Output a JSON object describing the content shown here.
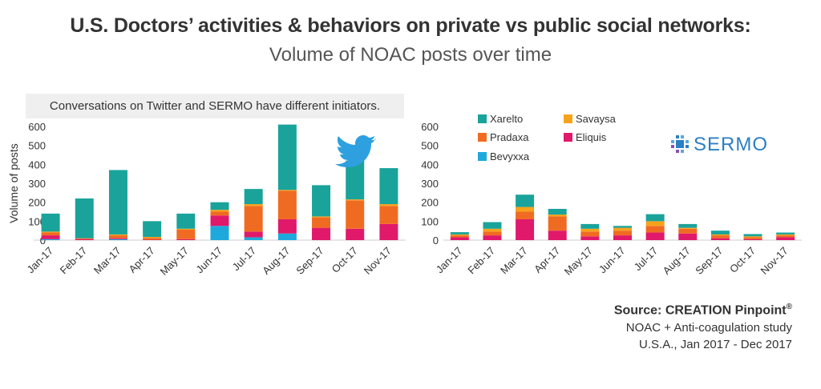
{
  "header": {
    "title": "U.S. Doctors’ activities & behaviors on private vs public social networks:",
    "subtitle": "Volume of NOAC posts over time"
  },
  "note": "Conversations on Twitter and SERMO have different initiators.",
  "source": {
    "line1": "Source: CREATION Pinpoint",
    "reg": "®",
    "line2": "NOAC + Anti-coagulation study",
    "line3": "U.S.A., Jan 2017 - Dec 2017"
  },
  "colors": {
    "Bevyxxa": "#1ea9dc",
    "Eliquis": "#e0196b",
    "Pradaxa": "#f06b22",
    "Savaysa": "#f7a21b",
    "Xarelto": "#1aa39a"
  },
  "legend": [
    "Xarelto",
    "Savaysa",
    "Pradaxa",
    "Eliquis",
    "Bevyxxa"
  ],
  "logo_text": "SERMO",
  "chart_data": [
    {
      "type": "bar",
      "stacked": true,
      "network": "Twitter",
      "categories": [
        "Jan-17",
        "Feb-17",
        "Mar-17",
        "Apr-17",
        "May-17",
        "Jun-17",
        "Jul-17",
        "Aug-17",
        "Sep-17",
        "Oct-17",
        "Nov-17"
      ],
      "ylabel": "Volume of posts",
      "ylim": [
        0,
        600
      ],
      "yticks": [
        0,
        100,
        200,
        300,
        400,
        500,
        600
      ],
      "series": [
        {
          "name": "Bevyxxa",
          "values": [
            5,
            0,
            5,
            0,
            0,
            75,
            15,
            35,
            0,
            0,
            0
          ]
        },
        {
          "name": "Eliquis",
          "values": [
            20,
            5,
            5,
            2,
            5,
            55,
            30,
            75,
            65,
            60,
            85
          ]
        },
        {
          "name": "Pradaxa",
          "values": [
            15,
            5,
            15,
            10,
            50,
            20,
            135,
            150,
            55,
            150,
            95
          ]
        },
        {
          "name": "Savaysa",
          "values": [
            5,
            0,
            5,
            5,
            5,
            10,
            10,
            5,
            5,
            5,
            10
          ]
        },
        {
          "name": "Xarelto",
          "values": [
            95,
            210,
            340,
            83,
            80,
            40,
            80,
            345,
            165,
            205,
            190
          ]
        }
      ]
    },
    {
      "type": "bar",
      "stacked": true,
      "network": "SERMO",
      "categories": [
        "Jan-17",
        "Feb-17",
        "Mar-17",
        "Apr-17",
        "May-17",
        "Jun-17",
        "Jul-17",
        "Aug-17",
        "Sep-17",
        "Oct-17",
        "Nov-17"
      ],
      "ylim": [
        0,
        600
      ],
      "yticks": [
        0,
        100,
        200,
        300,
        400,
        500,
        600
      ],
      "series": [
        {
          "name": "Bevyxxa",
          "values": [
            0,
            0,
            0,
            0,
            0,
            0,
            0,
            0,
            0,
            0,
            0
          ]
        },
        {
          "name": "Eliquis",
          "values": [
            15,
            25,
            110,
            50,
            20,
            25,
            40,
            35,
            10,
            5,
            15
          ]
        },
        {
          "name": "Pradaxa",
          "values": [
            10,
            20,
            40,
            75,
            25,
            25,
            35,
            25,
            15,
            10,
            10
          ]
        },
        {
          "name": "Savaysa",
          "values": [
            5,
            15,
            25,
            10,
            15,
            15,
            25,
            5,
            5,
            5,
            5
          ]
        },
        {
          "name": "Xarelto",
          "values": [
            12,
            35,
            65,
            30,
            25,
            10,
            37,
            20,
            20,
            12,
            10
          ]
        }
      ]
    }
  ]
}
